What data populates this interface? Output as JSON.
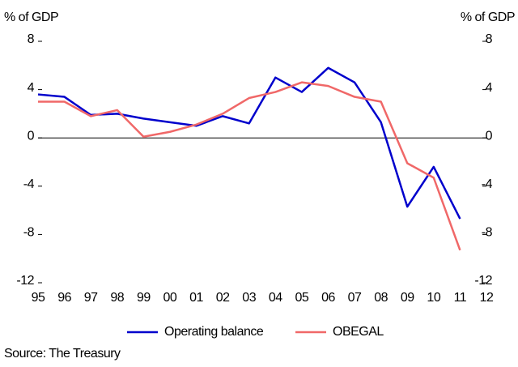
{
  "chart_data": {
    "type": "line",
    "ylabel": "% of GDP",
    "y2label": "% of GDP",
    "categories": [
      "95",
      "96",
      "97",
      "98",
      "99",
      "00",
      "01",
      "02",
      "03",
      "04",
      "05",
      "06",
      "07",
      "08",
      "09",
      "10",
      "11",
      "12"
    ],
    "series": [
      {
        "name": "Operating balance",
        "color": "#0000cc",
        "values": [
          3.6,
          3.4,
          1.9,
          2.0,
          1.6,
          1.3,
          1.0,
          1.8,
          1.2,
          5.0,
          3.8,
          5.8,
          4.6,
          1.3,
          -5.7,
          -2.4,
          -6.7,
          null
        ]
      },
      {
        "name": "OBEGAL",
        "color": "#f06868",
        "values": [
          3.0,
          3.0,
          1.8,
          2.3,
          0.1,
          0.5,
          1.1,
          2.0,
          3.3,
          3.8,
          4.6,
          4.3,
          3.4,
          3.0,
          -2.1,
          -3.3,
          -9.3,
          null
        ]
      }
    ],
    "ylim": [
      -12,
      8
    ],
    "yticks": [
      -12,
      -8,
      -4,
      0,
      4,
      8
    ],
    "y2lim": [
      -12,
      8
    ],
    "y2ticks": [
      -12,
      -8,
      -4,
      0,
      4,
      8
    ],
    "legend": "bottom",
    "source": "Source: The Treasury"
  }
}
